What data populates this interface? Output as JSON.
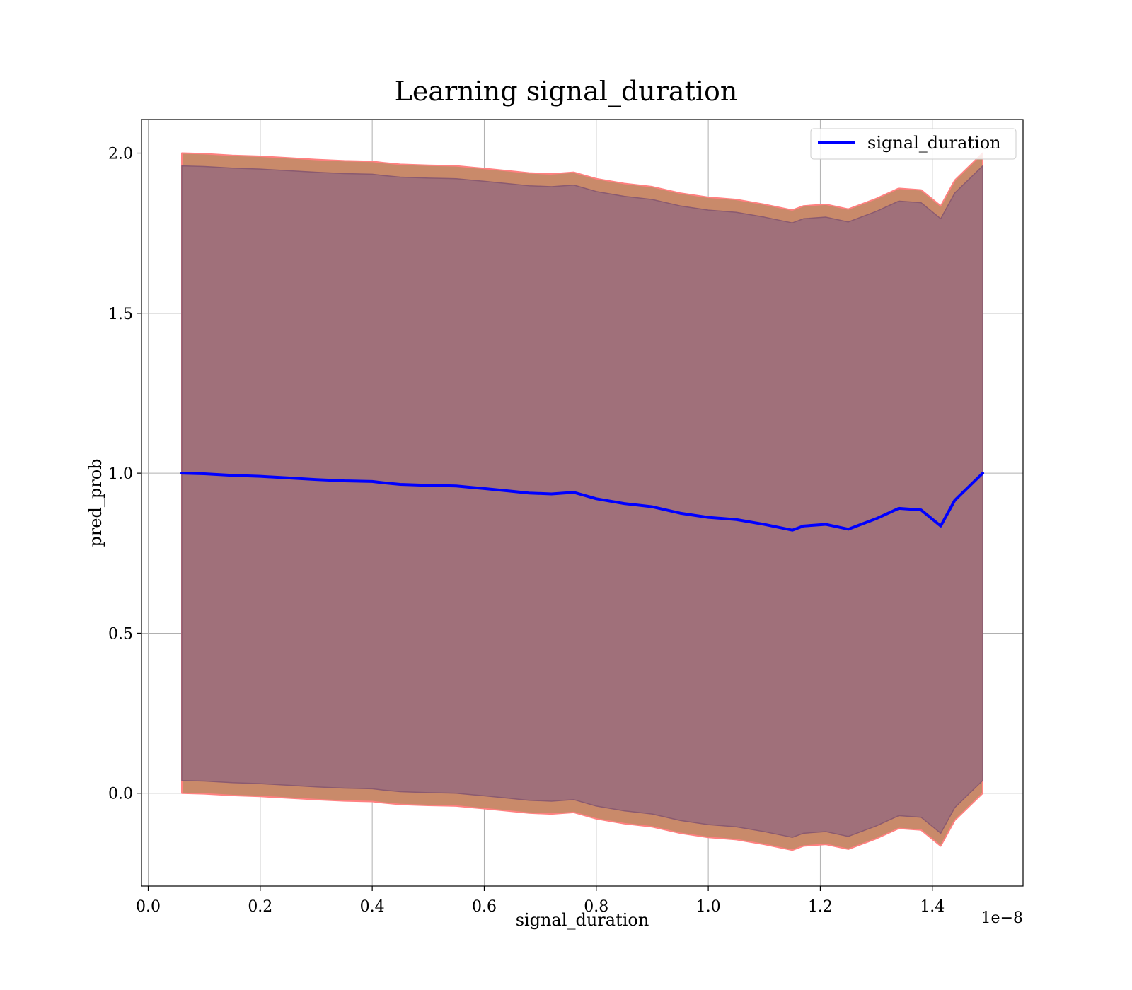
{
  "chart_data": {
    "type": "line",
    "title": "Learning signal_duration",
    "xlabel": "signal_duration",
    "ylabel": "pred_prob",
    "x_offset_text": "1e−8",
    "xlim": [
      -0.012,
      1.562
    ],
    "ylim": [
      -0.29,
      2.105
    ],
    "x_ticks": [
      0.0,
      0.2,
      0.4,
      0.6,
      0.8,
      1.0,
      1.2,
      1.4
    ],
    "x_tick_labels": [
      "0.0",
      "0.2",
      "0.4",
      "0.6",
      "0.8",
      "1.0",
      "1.2",
      "1.4"
    ],
    "y_ticks": [
      0.0,
      0.5,
      1.0,
      1.5,
      2.0
    ],
    "y_tick_labels": [
      "0.0",
      "0.5",
      "1.0",
      "1.5",
      "2.0"
    ],
    "grid": true,
    "legend_position": "top-right",
    "colors": {
      "line": "#0000ff",
      "outer_band": "#c98a6a",
      "outer_band_edge": "#ff8080",
      "inner_band": "#a0707a",
      "inner_band_edge": "#8a5a70"
    },
    "series": [
      {
        "name": "signal_duration",
        "x": [
          0.06,
          0.1,
          0.15,
          0.2,
          0.25,
          0.3,
          0.35,
          0.4,
          0.42,
          0.45,
          0.5,
          0.55,
          0.58,
          0.6,
          0.64,
          0.68,
          0.72,
          0.76,
          0.8,
          0.85,
          0.9,
          0.95,
          1.0,
          1.05,
          1.1,
          1.15,
          1.17,
          1.21,
          1.25,
          1.3,
          1.34,
          1.38,
          1.415,
          1.44,
          1.49
        ],
        "y": [
          1.0,
          0.998,
          0.993,
          0.99,
          0.985,
          0.98,
          0.976,
          0.974,
          0.97,
          0.965,
          0.962,
          0.96,
          0.955,
          0.952,
          0.945,
          0.938,
          0.935,
          0.94,
          0.92,
          0.905,
          0.895,
          0.875,
          0.862,
          0.855,
          0.84,
          0.822,
          0.835,
          0.84,
          0.825,
          0.858,
          0.89,
          0.885,
          0.835,
          0.915,
          1.0
        ]
      }
    ],
    "bands": [
      {
        "role": "outer",
        "x": [
          0.06,
          0.1,
          0.15,
          0.2,
          0.25,
          0.3,
          0.35,
          0.4,
          0.42,
          0.45,
          0.5,
          0.55,
          0.58,
          0.6,
          0.64,
          0.68,
          0.72,
          0.76,
          0.8,
          0.85,
          0.9,
          0.95,
          1.0,
          1.05,
          1.1,
          1.15,
          1.17,
          1.21,
          1.25,
          1.3,
          1.34,
          1.38,
          1.415,
          1.44,
          1.49
        ],
        "upper": [
          2.0,
          1.998,
          1.993,
          1.99,
          1.985,
          1.98,
          1.976,
          1.974,
          1.97,
          1.965,
          1.962,
          1.96,
          1.955,
          1.952,
          1.945,
          1.938,
          1.935,
          1.94,
          1.92,
          1.905,
          1.895,
          1.875,
          1.862,
          1.855,
          1.84,
          1.822,
          1.835,
          1.84,
          1.825,
          1.858,
          1.89,
          1.885,
          1.835,
          1.915,
          2.0
        ],
        "lower": [
          0.0,
          -0.002,
          -0.007,
          -0.01,
          -0.015,
          -0.02,
          -0.024,
          -0.026,
          -0.03,
          -0.035,
          -0.038,
          -0.04,
          -0.045,
          -0.048,
          -0.055,
          -0.062,
          -0.065,
          -0.06,
          -0.08,
          -0.095,
          -0.105,
          -0.125,
          -0.138,
          -0.145,
          -0.16,
          -0.178,
          -0.165,
          -0.16,
          -0.175,
          -0.142,
          -0.11,
          -0.115,
          -0.165,
          -0.085,
          0.0
        ]
      },
      {
        "role": "inner",
        "x": [
          0.06,
          0.1,
          0.15,
          0.2,
          0.25,
          0.3,
          0.35,
          0.4,
          0.42,
          0.45,
          0.5,
          0.55,
          0.58,
          0.6,
          0.64,
          0.68,
          0.72,
          0.76,
          0.8,
          0.85,
          0.9,
          0.95,
          1.0,
          1.05,
          1.1,
          1.15,
          1.17,
          1.21,
          1.25,
          1.3,
          1.34,
          1.38,
          1.415,
          1.44,
          1.49
        ],
        "upper": [
          1.96,
          1.958,
          1.953,
          1.95,
          1.945,
          1.94,
          1.936,
          1.934,
          1.93,
          1.925,
          1.922,
          1.92,
          1.915,
          1.912,
          1.905,
          1.898,
          1.895,
          1.9,
          1.88,
          1.865,
          1.855,
          1.835,
          1.822,
          1.815,
          1.8,
          1.782,
          1.795,
          1.8,
          1.785,
          1.818,
          1.85,
          1.845,
          1.795,
          1.875,
          1.96
        ],
        "lower": [
          0.04,
          0.038,
          0.033,
          0.03,
          0.025,
          0.02,
          0.016,
          0.014,
          0.01,
          0.005,
          0.002,
          0.0,
          -0.005,
          -0.008,
          -0.015,
          -0.022,
          -0.025,
          -0.02,
          -0.04,
          -0.055,
          -0.065,
          -0.085,
          -0.098,
          -0.105,
          -0.12,
          -0.138,
          -0.125,
          -0.12,
          -0.135,
          -0.102,
          -0.07,
          -0.075,
          -0.125,
          -0.045,
          0.04
        ]
      }
    ]
  }
}
